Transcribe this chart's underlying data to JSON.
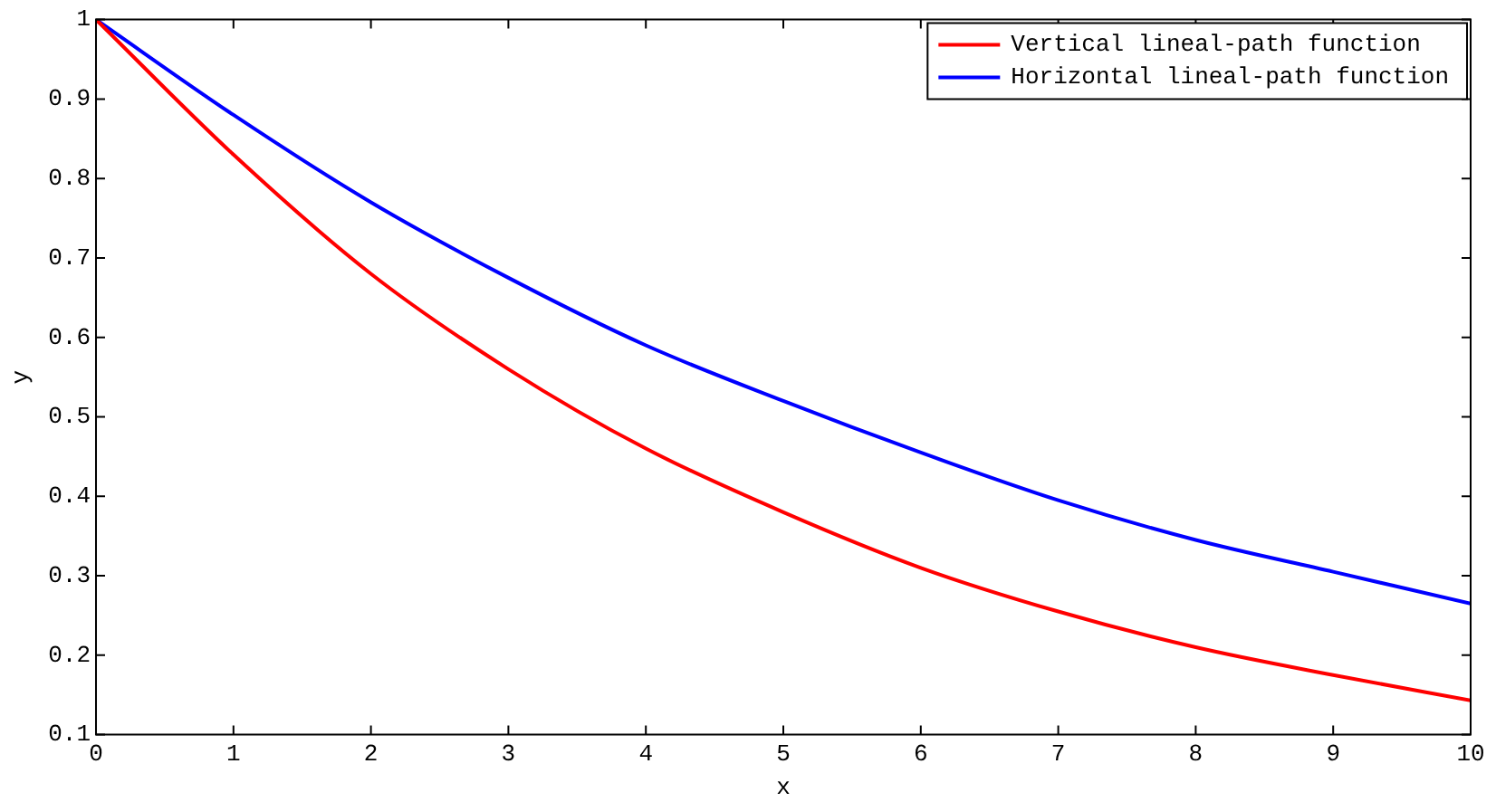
{
  "chart_data": {
    "type": "line",
    "xlabel": "x",
    "ylabel": "y",
    "xlim": [
      0,
      10
    ],
    "ylim": [
      0.1,
      1
    ],
    "xticks": [
      0,
      1,
      2,
      3,
      4,
      5,
      6,
      7,
      8,
      9,
      10
    ],
    "yticks": [
      {
        "value": 0.1,
        "label": "0.1"
      },
      {
        "value": 0.2,
        "label": "0.2"
      },
      {
        "value": 0.3,
        "label": "0.3"
      },
      {
        "value": 0.4,
        "label": "0.4"
      },
      {
        "value": 0.5,
        "label": "0.5"
      },
      {
        "value": 0.6,
        "label": "0.6"
      },
      {
        "value": 0.7,
        "label": "0.7"
      },
      {
        "value": 0.8,
        "label": "0.8"
      },
      {
        "value": 0.9,
        "label": "0.9"
      },
      {
        "value": 1,
        "label": "1"
      }
    ],
    "grid": false,
    "legend": "top right",
    "marker": "none",
    "line_style": "solid",
    "x": [
      0,
      1,
      2,
      3,
      4,
      5,
      6,
      7,
      8,
      9,
      10
    ],
    "series": [
      {
        "name": "Vertical lineal-path function",
        "color": "#ff0000",
        "values": [
          1,
          0.83,
          0.68,
          0.56,
          0.46,
          0.38,
          0.31,
          0.255,
          0.21,
          0.175,
          0.143
        ]
      },
      {
        "name": "Horizontal lineal-path function",
        "color": "#0000ff",
        "values": [
          1,
          0.88,
          0.77,
          0.675,
          0.59,
          0.52,
          0.455,
          0.395,
          0.345,
          0.305,
          0.265
        ]
      }
    ]
  }
}
